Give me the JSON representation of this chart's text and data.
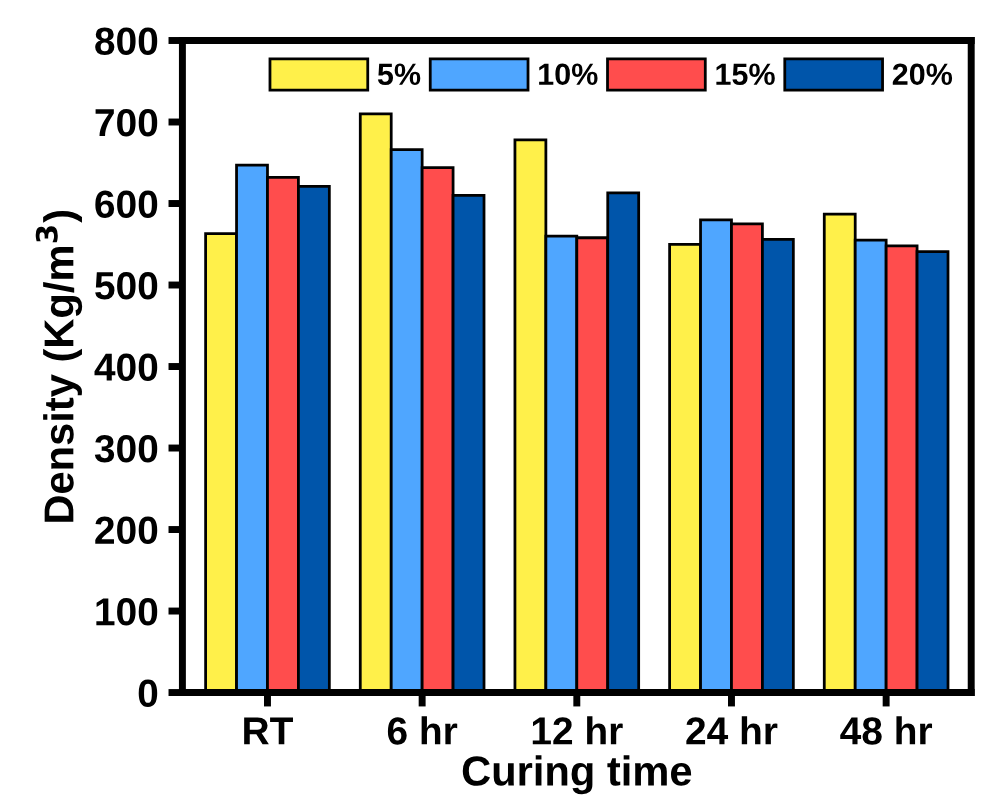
{
  "chart_data": {
    "type": "bar",
    "xlabel": "Curing time",
    "ylabel": "Density (Kg/m$^{3}$)",
    "categories": [
      "RT",
      "6 hr",
      "12 hr",
      "24 hr",
      "48 hr"
    ],
    "series": [
      {
        "name": "5%",
        "color": "#fff04a",
        "values": [
          563,
          710,
          678,
          550,
          587
        ]
      },
      {
        "name": "10%",
        "color": "#4fa6ff",
        "values": [
          647,
          666,
          560,
          580,
          555
        ]
      },
      {
        "name": "15%",
        "color": "#ff4d4d",
        "values": [
          632,
          644,
          558,
          575,
          548
        ]
      },
      {
        "name": "20%",
        "color": "#0055aa",
        "values": [
          621,
          610,
          613,
          556,
          541
        ]
      }
    ],
    "ylim": [
      0,
      800
    ],
    "yticks": [
      0,
      100,
      200,
      300,
      400,
      500,
      600,
      700,
      800
    ],
    "grid": false,
    "legend": "top right"
  }
}
